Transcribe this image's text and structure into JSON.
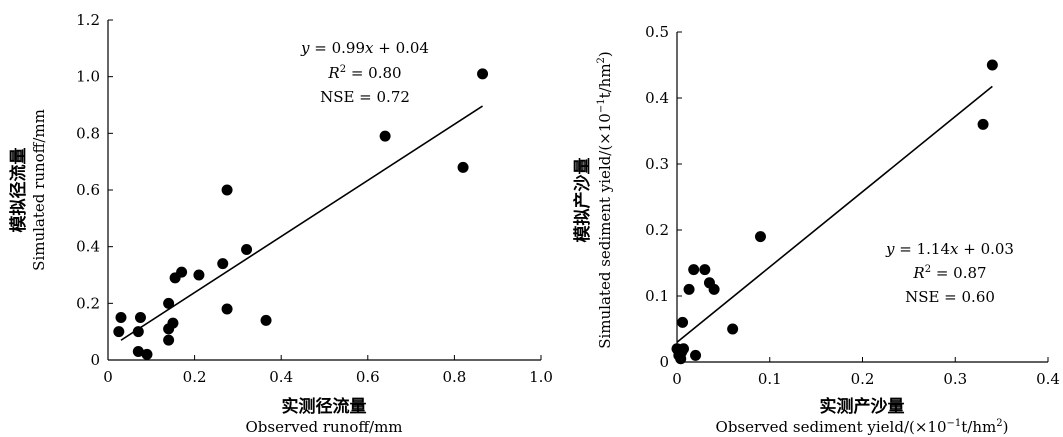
{
  "chart_data": [
    {
      "type": "scatter",
      "xlabel_cn": "实测径流量",
      "xlabel_en": "Observed runoff/mm",
      "ylabel_cn": "模拟径流量",
      "ylabel_en": "Simulated runoff/mm",
      "xlim": [
        0,
        1.0
      ],
      "ylim": [
        0,
        1.2
      ],
      "xticks": [
        "0",
        "0.2",
        "0.4",
        "0.6",
        "0.8",
        "1.0"
      ],
      "yticks": [
        "0",
        "0.2",
        "0.4",
        "0.6",
        "0.8",
        "1.0",
        "1.2"
      ],
      "annotation": {
        "eq": {
          "y": "y",
          "mid": " = 0.99",
          "x": "x",
          "tail": " + 0.04"
        },
        "r2": {
          "r": "R",
          "sup": "2",
          "tail": " = 0.80"
        },
        "nse": "NSE = 0.72"
      },
      "fit": {
        "slope": 0.99,
        "intercept": 0.04,
        "x_range": [
          0.03,
          0.865
        ]
      },
      "points": [
        {
          "x": 0.025,
          "y": 0.1
        },
        {
          "x": 0.03,
          "y": 0.15
        },
        {
          "x": 0.07,
          "y": 0.1
        },
        {
          "x": 0.07,
          "y": 0.03
        },
        {
          "x": 0.075,
          "y": 0.15
        },
        {
          "x": 0.09,
          "y": 0.02
        },
        {
          "x": 0.14,
          "y": 0.2
        },
        {
          "x": 0.14,
          "y": 0.11
        },
        {
          "x": 0.14,
          "y": 0.07
        },
        {
          "x": 0.15,
          "y": 0.13
        },
        {
          "x": 0.155,
          "y": 0.29
        },
        {
          "x": 0.17,
          "y": 0.31
        },
        {
          "x": 0.21,
          "y": 0.3
        },
        {
          "x": 0.265,
          "y": 0.34
        },
        {
          "x": 0.275,
          "y": 0.6
        },
        {
          "x": 0.275,
          "y": 0.18
        },
        {
          "x": 0.32,
          "y": 0.39
        },
        {
          "x": 0.365,
          "y": 0.14
        },
        {
          "x": 0.64,
          "y": 0.79
        },
        {
          "x": 0.82,
          "y": 0.68
        },
        {
          "x": 0.865,
          "y": 1.01
        }
      ]
    },
    {
      "type": "scatter",
      "xlabel_cn": "实测产沙量",
      "xlabel_en": "Observed sediment yield/(×10",
      "xlabel_en_sup": "−1",
      "xlabel_en_mid": "t/hm",
      "xlabel_en_sup2": "2",
      "xlabel_en_end": ")",
      "ylabel_cn": "模拟产沙量",
      "ylabel_en": "Simulated sediment yield/(×10",
      "ylabel_en_sup": "−1",
      "ylabel_en_mid": "t/hm",
      "ylabel_en_sup2": "2",
      "ylabel_en_end": ")",
      "xlim": [
        0,
        0.4
      ],
      "ylim": [
        0,
        0.5
      ],
      "xticks": [
        "0",
        "0.1",
        "0.2",
        "0.3",
        "0.4"
      ],
      "yticks": [
        "0",
        "0.1",
        "0.2",
        "0.3",
        "0.4",
        "0.5"
      ],
      "annotation": {
        "eq": {
          "y": "y",
          "mid": " = 1.14",
          "x": "x",
          "tail": " + 0.03"
        },
        "r2": {
          "r": "R",
          "sup": "2",
          "tail": " = 0.87"
        },
        "nse": "NSE = 0.60"
      },
      "fit": {
        "slope": 1.14,
        "intercept": 0.03,
        "x_range": [
          0.0,
          0.34
        ]
      },
      "points": [
        {
          "x": 0.0,
          "y": 0.02
        },
        {
          "x": 0.002,
          "y": 0.01
        },
        {
          "x": 0.004,
          "y": 0.005
        },
        {
          "x": 0.005,
          "y": 0.015
        },
        {
          "x": 0.006,
          "y": 0.06
        },
        {
          "x": 0.007,
          "y": 0.02
        },
        {
          "x": 0.013,
          "y": 0.11
        },
        {
          "x": 0.018,
          "y": 0.14
        },
        {
          "x": 0.02,
          "y": 0.01
        },
        {
          "x": 0.03,
          "y": 0.14
        },
        {
          "x": 0.035,
          "y": 0.12
        },
        {
          "x": 0.04,
          "y": 0.11
        },
        {
          "x": 0.06,
          "y": 0.05
        },
        {
          "x": 0.09,
          "y": 0.19
        },
        {
          "x": 0.33,
          "y": 0.36
        },
        {
          "x": 0.34,
          "y": 0.45
        }
      ]
    }
  ]
}
